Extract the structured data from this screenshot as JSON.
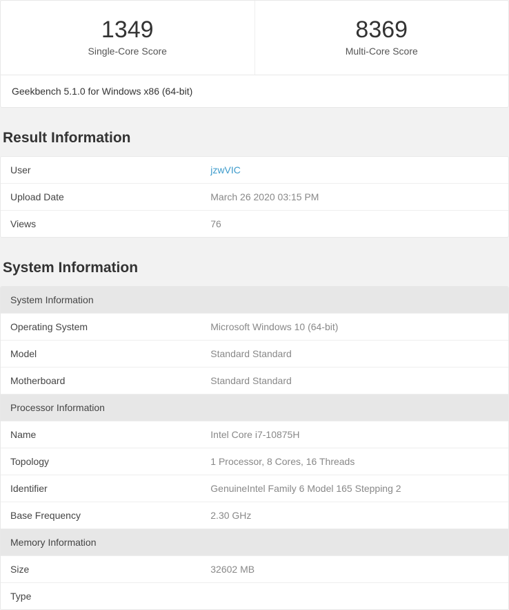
{
  "scores": {
    "single_value": "1349",
    "single_label": "Single-Core Score",
    "multi_value": "8369",
    "multi_label": "Multi-Core Score",
    "version": "Geekbench 5.1.0 for Windows x86 (64-bit)"
  },
  "result_info": {
    "title": "Result Information",
    "rows": [
      {
        "key": "User",
        "val": "jzwVIC",
        "link": true
      },
      {
        "key": "Upload Date",
        "val": "March 26 2020 03:15 PM"
      },
      {
        "key": "Views",
        "val": "76"
      }
    ]
  },
  "system_info": {
    "title": "System Information",
    "groups": [
      {
        "header": "System Information",
        "rows": [
          {
            "key": "Operating System",
            "val": "Microsoft Windows 10 (64-bit)"
          },
          {
            "key": "Model",
            "val": "Standard Standard"
          },
          {
            "key": "Motherboard",
            "val": "Standard Standard"
          }
        ]
      },
      {
        "header": "Processor Information",
        "rows": [
          {
            "key": "Name",
            "val": "Intel Core i7-10875H"
          },
          {
            "key": "Topology",
            "val": "1 Processor, 8 Cores, 16 Threads"
          },
          {
            "key": "Identifier",
            "val": "GenuineIntel Family 6 Model 165 Stepping 2"
          },
          {
            "key": "Base Frequency",
            "val": "2.30 GHz"
          }
        ]
      },
      {
        "header": "Memory Information",
        "rows": [
          {
            "key": "Size",
            "val": "32602 MB"
          },
          {
            "key": "Type",
            "val": ""
          }
        ]
      }
    ]
  },
  "colors": {
    "background": "#f2f2f2",
    "card_bg": "#ffffff",
    "border": "#e8e8e8",
    "header_bg": "#e7e7e7",
    "text_primary": "#333333",
    "text_secondary": "#888888",
    "link": "#3b9acb"
  }
}
